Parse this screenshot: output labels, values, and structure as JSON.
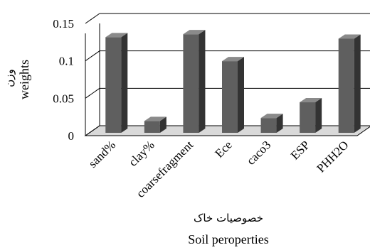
{
  "chart_data": {
    "type": "bar",
    "categories": [
      "sand%",
      "clay%",
      "coarsefragment",
      "Ece",
      "caco3",
      "ESP",
      "PHH2O"
    ],
    "values": [
      0.124,
      0.012,
      0.128,
      0.092,
      0.016,
      0.037,
      0.122
    ],
    "ylim": [
      0,
      0.15
    ],
    "yticks": [
      "0",
      "0.05",
      "0.1",
      "0.15"
    ],
    "ylabel_fa": "وزن",
    "ylabel": "weights",
    "xlabel_fa": "خصوصیات خاک",
    "xlabel": "Soil peroperties",
    "grid": true,
    "legend": "none",
    "colors": {
      "bar_front": "#5f5f5f",
      "bar_side": "#333333",
      "bar_top": "#8a8a8a",
      "floor": "#d9d9d9",
      "grid": "#000000"
    }
  }
}
